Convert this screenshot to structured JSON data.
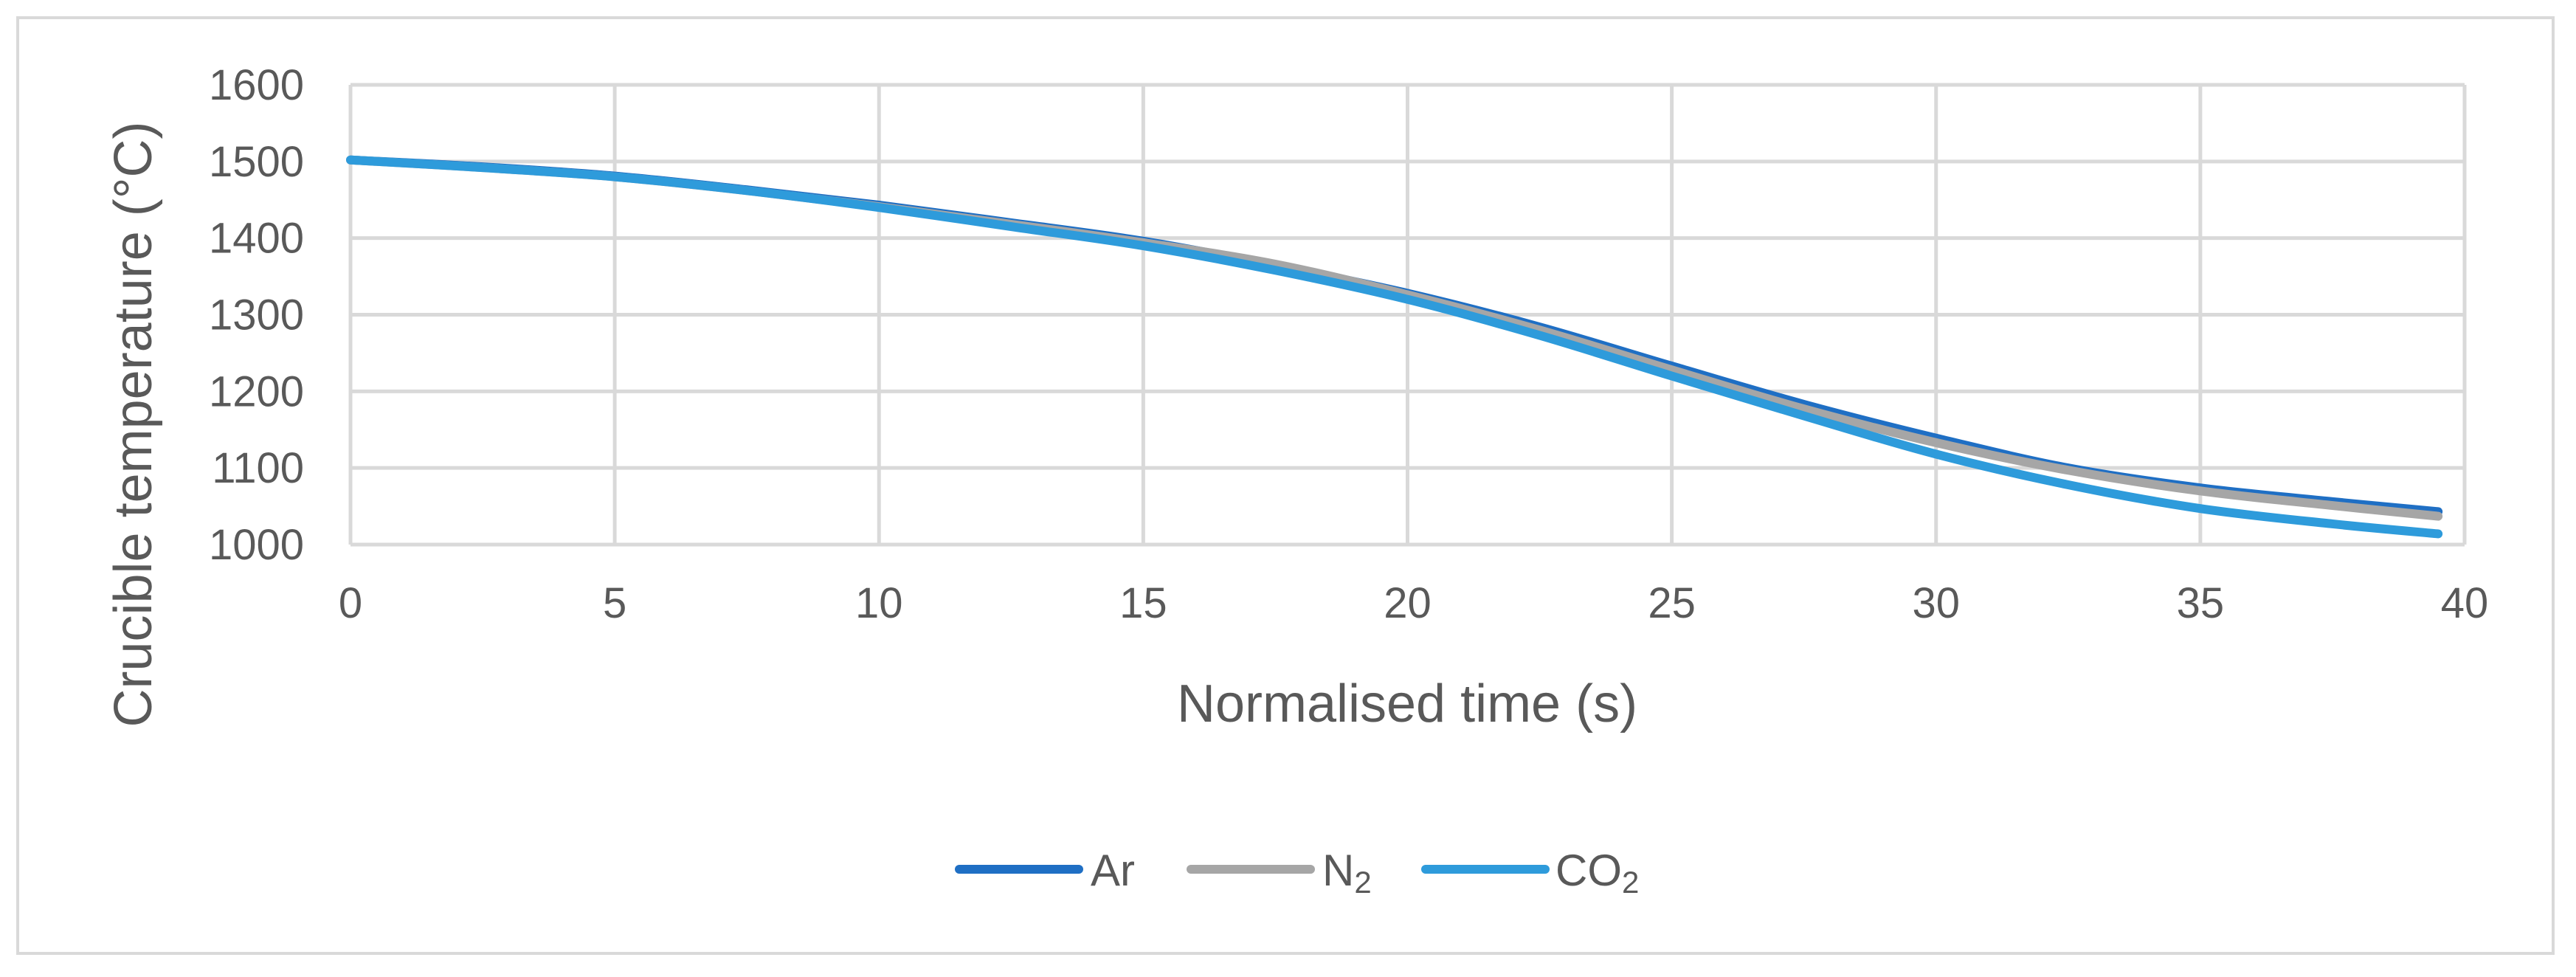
{
  "chart_data": {
    "type": "line",
    "title": "",
    "xlabel": "Normalised time (s)",
    "ylabel": "Crucible temperature (°C)",
    "xlim": [
      0,
      40
    ],
    "ylim": [
      1000,
      1600
    ],
    "xticks": [
      0,
      5,
      10,
      15,
      20,
      25,
      30,
      35,
      40
    ],
    "yticks": [
      1000,
      1100,
      1200,
      1300,
      1400,
      1500,
      1600
    ],
    "xtick_labels": [
      "0",
      "5",
      "10",
      "15",
      "20",
      "25",
      "30",
      "35",
      "40"
    ],
    "ytick_labels": [
      "1000",
      "1100",
      "1200",
      "1300",
      "1400",
      "1500",
      "1600"
    ],
    "grid": true,
    "legend_position": "bottom",
    "series": [
      {
        "name": "Ar",
        "label_main": "Ar",
        "label_sub": "",
        "color": "#1f6fc4",
        "x": [
          0,
          2.5,
          5,
          7.5,
          10,
          12.5,
          15,
          17.5,
          20,
          22.5,
          25,
          27.5,
          30,
          32.5,
          35,
          37.5,
          39.5
        ],
        "y": [
          1502,
          1493,
          1481,
          1463,
          1443,
          1420,
          1396,
          1364,
          1328,
          1284,
          1233,
          1183,
          1139,
          1100,
          1074,
          1056,
          1043
        ]
      },
      {
        "name": "N2",
        "label_main": "N",
        "label_sub": "2",
        "color": "#a6a6a6",
        "x": [
          0,
          2.5,
          5,
          7.5,
          10,
          12.5,
          15,
          17.5,
          20,
          22.5,
          25,
          27.5,
          30,
          32.5,
          35,
          37.5,
          39.5
        ],
        "y": [
          1502,
          1492,
          1480,
          1462,
          1441,
          1418,
          1394,
          1366,
          1326,
          1280,
          1228,
          1177,
          1133,
          1097,
          1070,
          1051,
          1037
        ]
      },
      {
        "name": "CO2",
        "label_main": "CO",
        "label_sub": "2",
        "color": "#2e9bdb",
        "x": [
          0,
          2.5,
          5,
          7.5,
          10,
          12.5,
          15,
          17.5,
          20,
          22.5,
          25,
          27.5,
          30,
          32.5,
          35,
          37.5,
          39.5
        ],
        "y": [
          1502,
          1492,
          1480,
          1462,
          1440,
          1415,
          1390,
          1358,
          1320,
          1273,
          1220,
          1168,
          1118,
          1078,
          1047,
          1027,
          1014
        ]
      }
    ]
  }
}
